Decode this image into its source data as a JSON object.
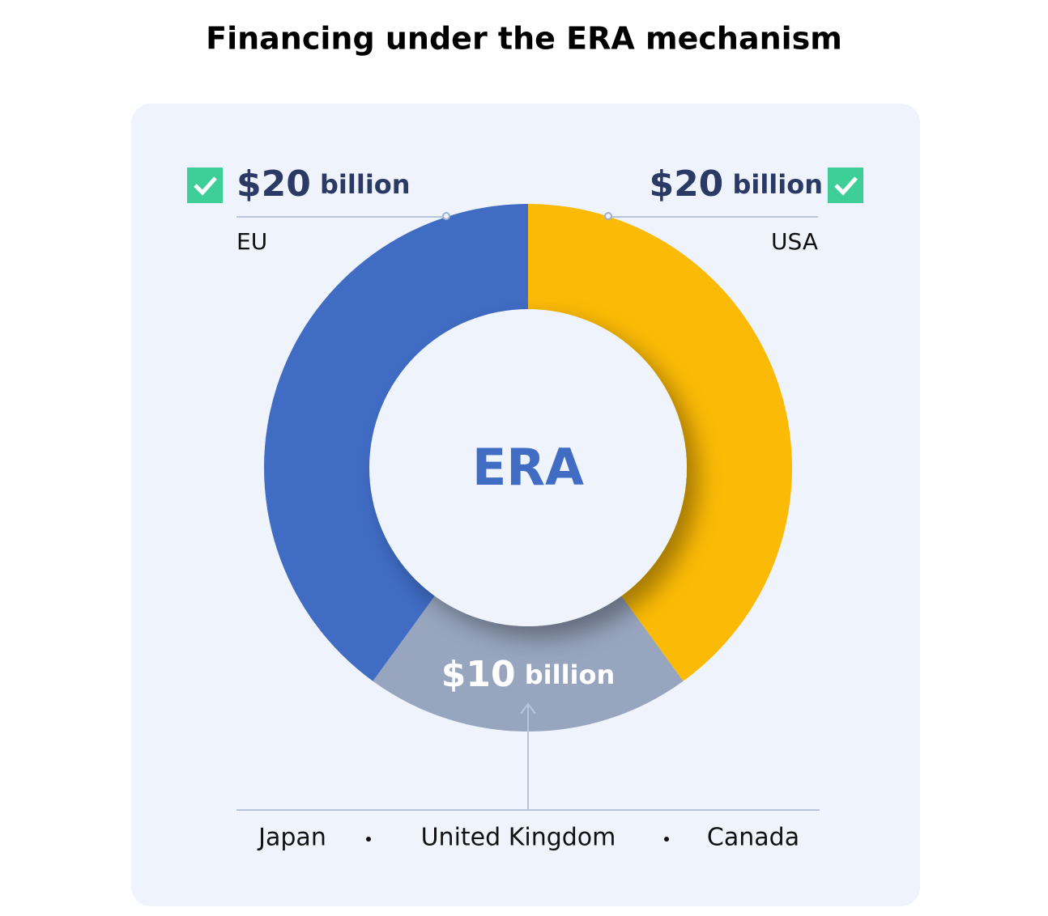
{
  "chart_data": {
    "type": "donut",
    "title": "Financing under the ERA mechanism",
    "center_label": "ERA",
    "categories": [
      "USA",
      null,
      "EU"
    ],
    "values": [
      20,
      10,
      20
    ],
    "value_labels": [
      "$20 billion",
      "$10 billion",
      "$20 billion"
    ],
    "colors": [
      "#fbba05",
      "#97a5be",
      "#406cc4"
    ],
    "others": [
      "Japan",
      "United Kingdom",
      "Canada"
    ]
  }
}
